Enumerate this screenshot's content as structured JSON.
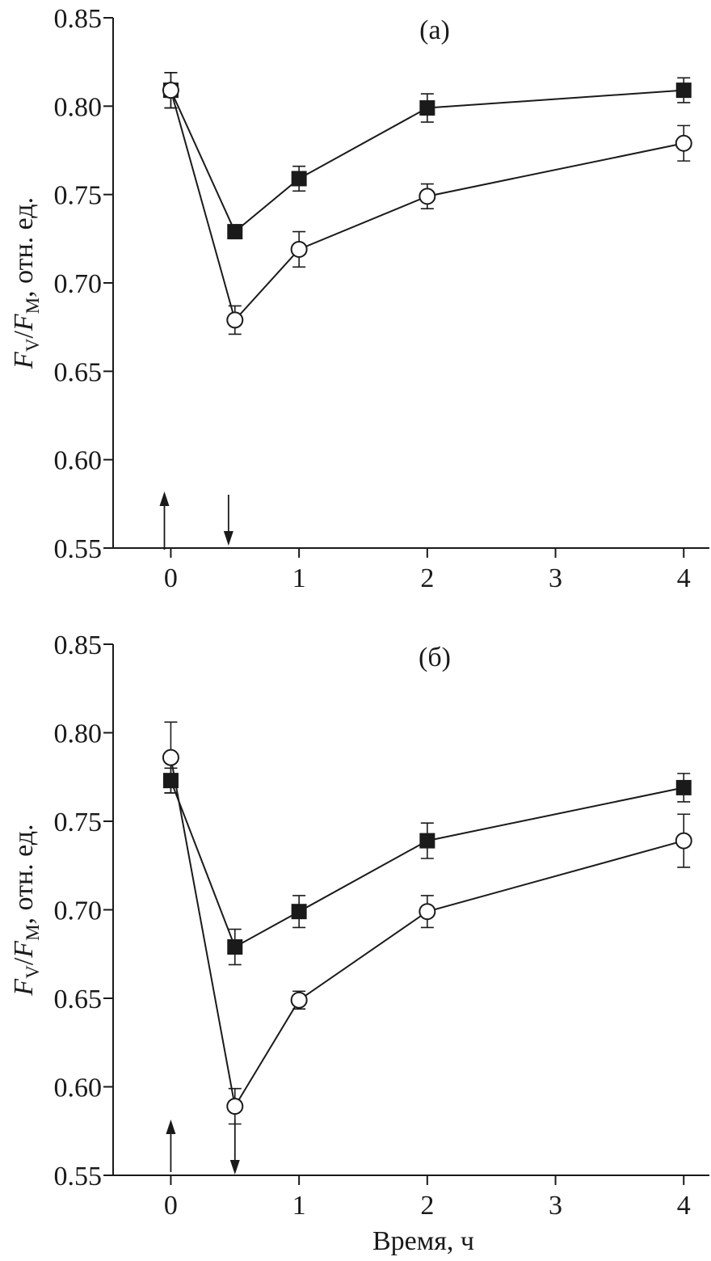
{
  "chart_data": [
    {
      "type": "line",
      "panel_label": "(а)",
      "xlabel": "",
      "ylabel": {
        "italic1": "F",
        "sub1": "V",
        "sep": "/",
        "italic2": "F",
        "sub2": "M",
        "rest": ", отн. ед."
      },
      "xlim": [
        -0.45,
        4.2
      ],
      "ylim": [
        0.55,
        0.85
      ],
      "xticks": [
        0,
        1,
        2,
        3,
        4
      ],
      "xtick_labels": [
        "0",
        "1",
        "2",
        "3",
        "4"
      ],
      "yticks": [
        0.55,
        0.6,
        0.65,
        0.7,
        0.75,
        0.8,
        0.85
      ],
      "ytick_labels": [
        "0.55",
        "0.60",
        "0.65",
        "0.70",
        "0.75",
        "0.80",
        "0.85"
      ],
      "grid": false,
      "series": [
        {
          "marker": "filled-square",
          "x": [
            0,
            0.5,
            1,
            2,
            4
          ],
          "y": [
            0.809,
            0.729,
            0.759,
            0.799,
            0.809
          ],
          "err": [
            0.01,
            0,
            0.007,
            0.008,
            0.007
          ]
        },
        {
          "marker": "open-circle",
          "x": [
            0,
            0.5,
            1,
            2,
            4
          ],
          "y": [
            0.809,
            0.679,
            0.719,
            0.749,
            0.779
          ],
          "err": [
            0.01,
            0.008,
            0.01,
            0.007,
            0.01
          ]
        }
      ],
      "annotations": [
        {
          "kind": "arrow-up",
          "x": -0.05
        },
        {
          "kind": "arrow-down",
          "x": 0.45
        }
      ]
    },
    {
      "type": "line",
      "panel_label": "(б)",
      "xlabel": "Время, ч",
      "ylabel": {
        "italic1": "F",
        "sub1": "V",
        "sep": "/",
        "italic2": "F",
        "sub2": "M",
        "rest": ", отн. ед."
      },
      "xlim": [
        -0.45,
        4.2
      ],
      "ylim": [
        0.55,
        0.85
      ],
      "xticks": [
        0,
        1,
        2,
        3,
        4
      ],
      "xtick_labels": [
        "0",
        "1",
        "2",
        "3",
        "4"
      ],
      "yticks": [
        0.55,
        0.6,
        0.65,
        0.7,
        0.75,
        0.8,
        0.85
      ],
      "ytick_labels": [
        "0.55",
        "0.60",
        "0.65",
        "0.70",
        "0.75",
        "0.80",
        "0.85"
      ],
      "grid": false,
      "series": [
        {
          "marker": "filled-square",
          "x": [
            0,
            0.5,
            1,
            2,
            4
          ],
          "y": [
            0.773,
            0.679,
            0.699,
            0.739,
            0.769
          ],
          "err": [
            0.007,
            0.01,
            0.009,
            0.01,
            0.008
          ]
        },
        {
          "marker": "open-circle",
          "x": [
            0,
            0.5,
            1,
            2,
            4
          ],
          "y": [
            0.786,
            0.589,
            0.649,
            0.699,
            0.739
          ],
          "err": [
            0.02,
            0.01,
            0.005,
            0.009,
            0.015
          ]
        }
      ],
      "annotations": [
        {
          "kind": "arrow-up",
          "x": 0
        },
        {
          "kind": "arrow-down",
          "x": 0.5
        }
      ]
    }
  ]
}
